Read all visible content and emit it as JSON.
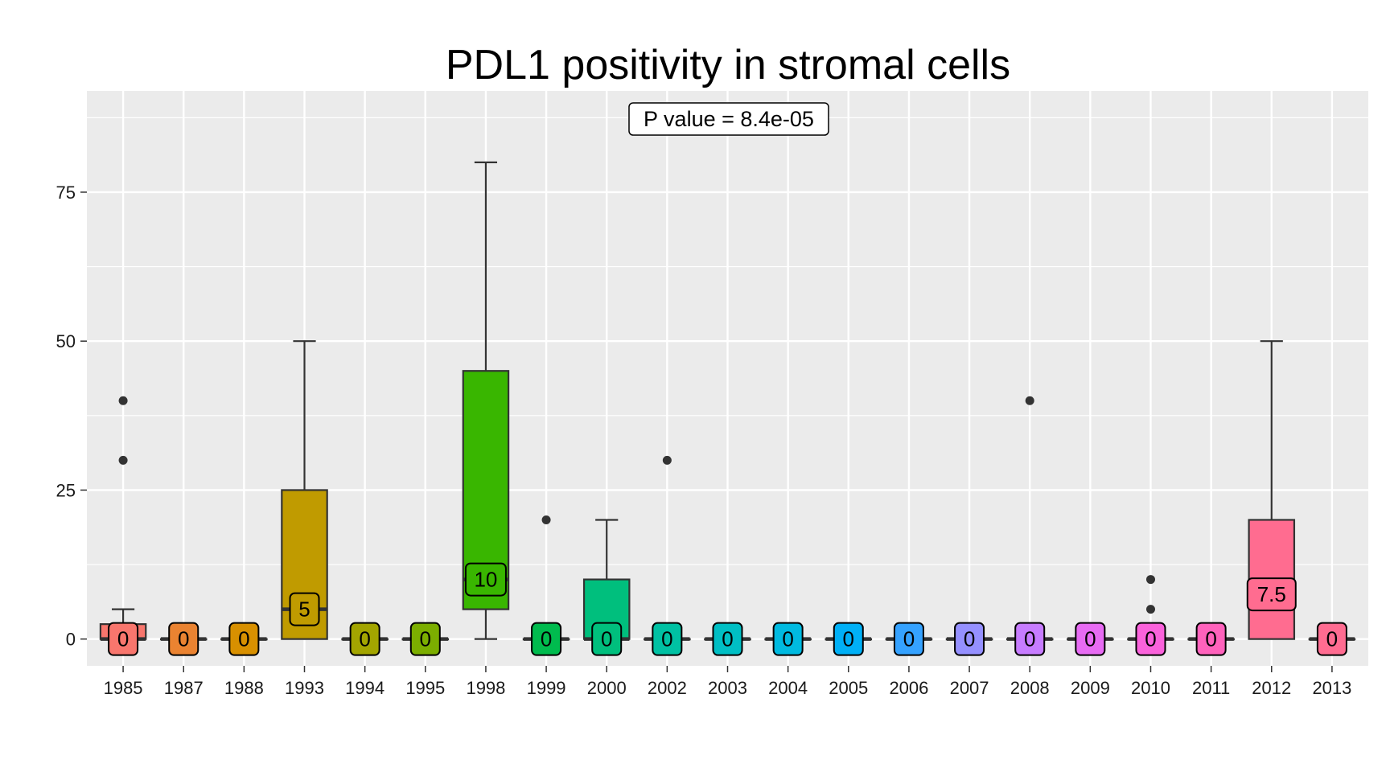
{
  "chart_data": {
    "type": "boxplot",
    "title": "PDL1 positivity in stromal cells",
    "xlabel": "",
    "ylabel": "",
    "annotation": "P value = 8.4e-05",
    "ylim": [
      -4.5,
      92
    ],
    "yticks": [
      0,
      25,
      50,
      75
    ],
    "grid": true,
    "legend": "none",
    "panel_background": "#ebebeb",
    "grid_color": "#ffffff",
    "boxes": [
      {
        "category": "1985",
        "color": "#F8766D",
        "min": 0,
        "q1": 0,
        "median": 0,
        "q3": 2.5,
        "max": 5,
        "outliers": [
          30,
          40
        ],
        "median_label": "0"
      },
      {
        "category": "1987",
        "color": "#EA8331",
        "min": 0,
        "q1": 0,
        "median": 0,
        "q3": 0,
        "max": 0,
        "outliers": [],
        "median_label": "0"
      },
      {
        "category": "1988",
        "color": "#D89000",
        "min": 0,
        "q1": 0,
        "median": 0,
        "q3": 0,
        "max": 0,
        "outliers": [],
        "median_label": "0"
      },
      {
        "category": "1993",
        "color": "#C09B00",
        "min": 0,
        "q1": 0,
        "median": 5,
        "q3": 25,
        "max": 50,
        "outliers": [],
        "median_label": "5"
      },
      {
        "category": "1994",
        "color": "#A3A500",
        "min": 0,
        "q1": 0,
        "median": 0,
        "q3": 0,
        "max": 0,
        "outliers": [],
        "median_label": "0"
      },
      {
        "category": "1995",
        "color": "#7CAE00",
        "min": 0,
        "q1": 0,
        "median": 0,
        "q3": 0,
        "max": 0,
        "outliers": [],
        "median_label": "0"
      },
      {
        "category": "1998",
        "color": "#39B600",
        "min": 0,
        "q1": 5,
        "median": 10,
        "q3": 45,
        "max": 80,
        "outliers": [],
        "median_label": "10"
      },
      {
        "category": "1999",
        "color": "#00BB4E",
        "min": 0,
        "q1": 0,
        "median": 0,
        "q3": 0,
        "max": 0,
        "outliers": [
          20
        ],
        "median_label": "0"
      },
      {
        "category": "2000",
        "color": "#00BF7D",
        "min": 0,
        "q1": 0,
        "median": 0,
        "q3": 10,
        "max": 20,
        "outliers": [],
        "median_label": "0"
      },
      {
        "category": "2002",
        "color": "#00C1A3",
        "min": 0,
        "q1": 0,
        "median": 0,
        "q3": 0,
        "max": 0,
        "outliers": [
          30
        ],
        "median_label": "0"
      },
      {
        "category": "2003",
        "color": "#00BFC4",
        "min": 0,
        "q1": 0,
        "median": 0,
        "q3": 0,
        "max": 0,
        "outliers": [],
        "median_label": "0"
      },
      {
        "category": "2004",
        "color": "#00BAE0",
        "min": 0,
        "q1": 0,
        "median": 0,
        "q3": 0,
        "max": 0,
        "outliers": [],
        "median_label": "0"
      },
      {
        "category": "2005",
        "color": "#00B0F6",
        "min": 0,
        "q1": 0,
        "median": 0,
        "q3": 0,
        "max": 0,
        "outliers": [],
        "median_label": "0"
      },
      {
        "category": "2006",
        "color": "#35A2FF",
        "min": 0,
        "q1": 0,
        "median": 0,
        "q3": 0,
        "max": 0,
        "outliers": [],
        "median_label": "0"
      },
      {
        "category": "2007",
        "color": "#9590FF",
        "min": 0,
        "q1": 0,
        "median": 0,
        "q3": 0,
        "max": 0,
        "outliers": [],
        "median_label": "0"
      },
      {
        "category": "2008",
        "color": "#C77CFF",
        "min": 0,
        "q1": 0,
        "median": 0,
        "q3": 0,
        "max": 0,
        "outliers": [
          40
        ],
        "median_label": "0"
      },
      {
        "category": "2009",
        "color": "#E76BF3",
        "min": 0,
        "q1": 0,
        "median": 0,
        "q3": 0,
        "max": 0,
        "outliers": [],
        "median_label": "0"
      },
      {
        "category": "2010",
        "color": "#FA62DB",
        "min": 0,
        "q1": 0,
        "median": 0,
        "q3": 0,
        "max": 0,
        "outliers": [
          5,
          10
        ],
        "median_label": "0"
      },
      {
        "category": "2011",
        "color": "#FF62BC",
        "min": 0,
        "q1": 0,
        "median": 0,
        "q3": 0,
        "max": 0,
        "outliers": [],
        "median_label": "0"
      },
      {
        "category": "2012",
        "color": "#FF6C90",
        "min": 0,
        "q1": 0,
        "median": 7.5,
        "q3": 20,
        "max": 50,
        "outliers": [],
        "median_label": "7.5"
      },
      {
        "category": "2013",
        "color": "#FF6C91",
        "min": 0,
        "q1": 0,
        "median": 0,
        "q3": 0,
        "max": 0,
        "outliers": [],
        "median_label": "0"
      }
    ]
  }
}
